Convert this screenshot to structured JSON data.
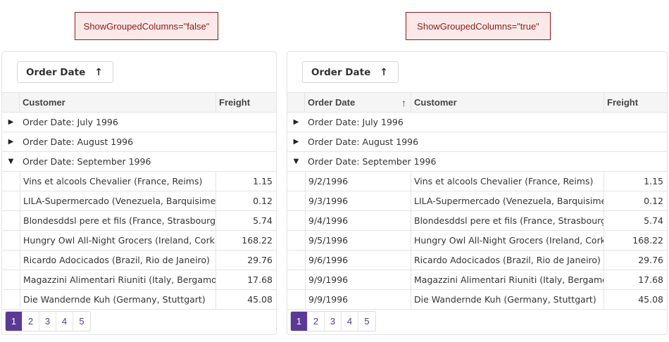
{
  "captions": {
    "left": "ShowGroupedColumns=\"false\"",
    "right": "ShowGroupedColumns=\"true\""
  },
  "group_chip": {
    "label": "Order Date",
    "sort_icon": "arrow-up-icon",
    "sort_glyph": "🠕"
  },
  "columns": {
    "order_date": "Order Date",
    "customer": "Customer",
    "freight": "Freight"
  },
  "groups": [
    {
      "label": "Order Date: July 1996",
      "expanded": false
    },
    {
      "label": "Order Date: August 1996",
      "expanded": false
    },
    {
      "label": "Order Date: September 1996",
      "expanded": true
    }
  ],
  "rows": [
    {
      "date": "9/2/1996",
      "customer": "Vins et alcools Chevalier (France, Reims)",
      "freight": "1.15"
    },
    {
      "date": "9/3/1996",
      "customer": "LILA-Supermercado (Venezuela, Barquisimeto)",
      "freight": "0.12"
    },
    {
      "date": "9/4/1996",
      "customer": "Blondesddsl pere et fils (France, Strasbourg)",
      "freight": "5.74"
    },
    {
      "date": "9/5/1996",
      "customer": "Hungry Owl All-Night Grocers (Ireland, Cork)",
      "freight": "168.22"
    },
    {
      "date": "9/6/1996",
      "customer": "Ricardo Adocicados (Brazil, Rio de Janeiro)",
      "freight": "29.76"
    },
    {
      "date": "9/9/1996",
      "customer": "Magazzini Alimentari Riuniti (Italy, Bergamo)",
      "freight": "17.68"
    },
    {
      "date": "9/9/1996",
      "customer": "Die Wandernde Kuh (Germany, Stuttgart)",
      "freight": "45.08"
    }
  ],
  "pager": {
    "pages": [
      "1",
      "2",
      "3",
      "4",
      "5"
    ],
    "active": "1"
  },
  "colors": {
    "accent": "#5b3a95",
    "caption_border": "#8b1a1a",
    "caption_bg": "#fbe9e9"
  }
}
